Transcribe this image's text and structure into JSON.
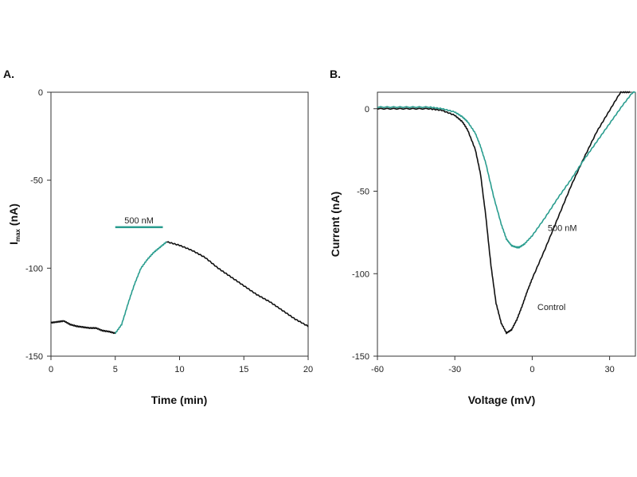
{
  "colors": {
    "control": "#111111",
    "drug": "#2a9d8f",
    "axis": "#333333"
  },
  "chart_data": [
    {
      "type": "line",
      "panel_label": "A.",
      "title": "",
      "xlabel": "Time (min)",
      "ylabel_main": "I",
      "ylabel_sub": "max",
      "ylabel_unit": " (nA)",
      "xlim": [
        0,
        20
      ],
      "ylim": [
        -150,
        0
      ],
      "xticks": [
        0,
        5,
        10,
        15,
        20
      ],
      "yticks": [
        0,
        -50,
        -100,
        -150
      ],
      "grid": false,
      "annotations": [
        {
          "text": "500 nM",
          "type": "application-bar",
          "x_start": 5,
          "x_end": 8.7,
          "y": -74
        }
      ],
      "series": [
        {
          "name": "baseline",
          "color_key": "control",
          "x": [
            0,
            0.5,
            1,
            1.5,
            2,
            2.5,
            3,
            3.5,
            4,
            4.5,
            5
          ],
          "y": [
            -131,
            -130.5,
            -130,
            -132,
            -133,
            -133.5,
            -134,
            -134,
            -135.5,
            -136,
            -137
          ]
        },
        {
          "name": "500 nM",
          "color_key": "drug",
          "x": [
            5,
            5.5,
            6,
            6.5,
            7,
            7.5,
            8,
            8.5,
            9
          ],
          "y": [
            -137,
            -132,
            -120,
            -109,
            -100,
            -95,
            -91,
            -88,
            -85
          ]
        },
        {
          "name": "washout",
          "color_key": "control",
          "x": [
            9,
            10,
            11,
            12,
            13,
            14,
            15,
            16,
            17,
            18,
            19,
            20
          ],
          "y": [
            -85,
            -87,
            -90,
            -94,
            -100,
            -105,
            -110,
            -115,
            -119,
            -124,
            -129,
            -133
          ]
        }
      ]
    },
    {
      "type": "line",
      "panel_label": "B.",
      "title": "",
      "xlabel": "Voltage (mV)",
      "ylabel": "Current (nA)",
      "xlim": [
        -60,
        40
      ],
      "ylim": [
        -150,
        10
      ],
      "xticks": [
        -60,
        -30,
        0,
        30
      ],
      "yticks": [
        0,
        -50,
        -100,
        -150
      ],
      "grid": false,
      "annotations": [
        {
          "text": "500 nM",
          "x": 6,
          "y": -74
        },
        {
          "text": "Control",
          "x": 2,
          "y": -122
        }
      ],
      "series": [
        {
          "name": "Control",
          "color_key": "control",
          "x": [
            -60,
            -50,
            -40,
            -35,
            -30,
            -27,
            -25,
            -22,
            -20,
            -18,
            -16,
            -14,
            -12,
            -10,
            -8,
            -6,
            -4,
            -2,
            0,
            5,
            10,
            15,
            20,
            25,
            30,
            35,
            38
          ],
          "y": [
            0,
            0,
            0,
            -1,
            -4,
            -8,
            -13,
            -25,
            -40,
            -65,
            -95,
            -118,
            -130,
            -136,
            -134,
            -128,
            -120,
            -111,
            -103,
            -85,
            -66,
            -47,
            -30,
            -14,
            -1,
            12,
            22
          ]
        },
        {
          "name": "500 nM",
          "color_key": "drug",
          "x": [
            -60,
            -50,
            -40,
            -35,
            -30,
            -27,
            -25,
            -22,
            -20,
            -18,
            -15,
            -12,
            -10,
            -8,
            -6,
            -5,
            -3,
            0,
            5,
            10,
            15,
            20,
            25,
            30,
            35,
            40
          ],
          "y": [
            1,
            1,
            1,
            0,
            -2,
            -5,
            -8,
            -15,
            -23,
            -33,
            -53,
            -70,
            -79,
            -83,
            -84,
            -84,
            -82,
            -77,
            -66,
            -54,
            -43,
            -31,
            -20,
            -9,
            2,
            12
          ]
        }
      ]
    }
  ]
}
